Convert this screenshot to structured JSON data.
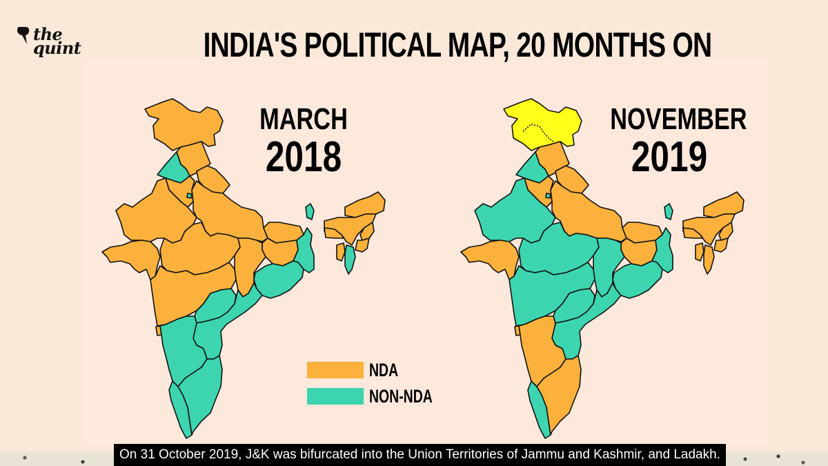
{
  "logo": {
    "line1": "the",
    "line2": "quint"
  },
  "title": "INDIA'S POLITICAL MAP, 20 MONTHS ON",
  "colors": {
    "nda": "#fbb13c",
    "non_nda": "#3cd5b0",
    "ut_jk_ladakh": "#ffff1a",
    "background": "#fde8dc",
    "border": "#111111"
  },
  "maps": [
    {
      "month": "MARCH",
      "year": "2018",
      "states": {
        "jammu_kashmir": "nda",
        "himachal": "nda",
        "punjab": "non_nda",
        "uttarakhand": "nda",
        "haryana": "nda",
        "delhi": "non_nda",
        "rajasthan": "nda",
        "uttar_pradesh": "nda",
        "gujarat": "nda",
        "madhya_pradesh": "nda",
        "bihar": "nda",
        "jharkhand": "nda",
        "west_bengal": "non_nda",
        "sikkim": "non_nda",
        "odisha": "non_nda",
        "chhattisgarh": "nda",
        "maharashtra": "nda",
        "telangana": "non_nda",
        "andhra_pradesh": "non_nda",
        "goa": "nda",
        "karnataka": "non_nda",
        "kerala": "non_nda",
        "tamil_nadu": "non_nda",
        "arunachal": "nda",
        "assam": "nda",
        "meghalaya": "nda",
        "nagaland": "nda",
        "manipur": "nda",
        "tripura": "nda",
        "mizoram": "non_nda"
      }
    },
    {
      "month": "NOVEMBER",
      "year": "2019",
      "states": {
        "jammu_kashmir": "ut_jk_ladakh",
        "himachal": "nda",
        "punjab": "non_nda",
        "uttarakhand": "nda",
        "haryana": "nda",
        "delhi": "non_nda",
        "rajasthan": "non_nda",
        "uttar_pradesh": "nda",
        "gujarat": "nda",
        "madhya_pradesh": "non_nda",
        "bihar": "nda",
        "jharkhand": "nda",
        "west_bengal": "non_nda",
        "sikkim": "non_nda",
        "odisha": "non_nda",
        "chhattisgarh": "non_nda",
        "maharashtra": "non_nda",
        "telangana": "non_nda",
        "andhra_pradesh": "non_nda",
        "goa": "nda",
        "karnataka": "nda",
        "kerala": "non_nda",
        "tamil_nadu": "nda",
        "arunachal": "nda",
        "assam": "nda",
        "meghalaya": "nda",
        "nagaland": "nda",
        "manipur": "nda",
        "tripura": "nda",
        "mizoram": "nda"
      }
    }
  ],
  "legend": [
    {
      "label": "NDA",
      "key": "nda"
    },
    {
      "label": "NON-NDA",
      "key": "non_nda"
    }
  ],
  "caption": "On 31 October 2019, J&K was bifurcated into the Union Territories of Jammu and Kashmir, and Ladakh."
}
